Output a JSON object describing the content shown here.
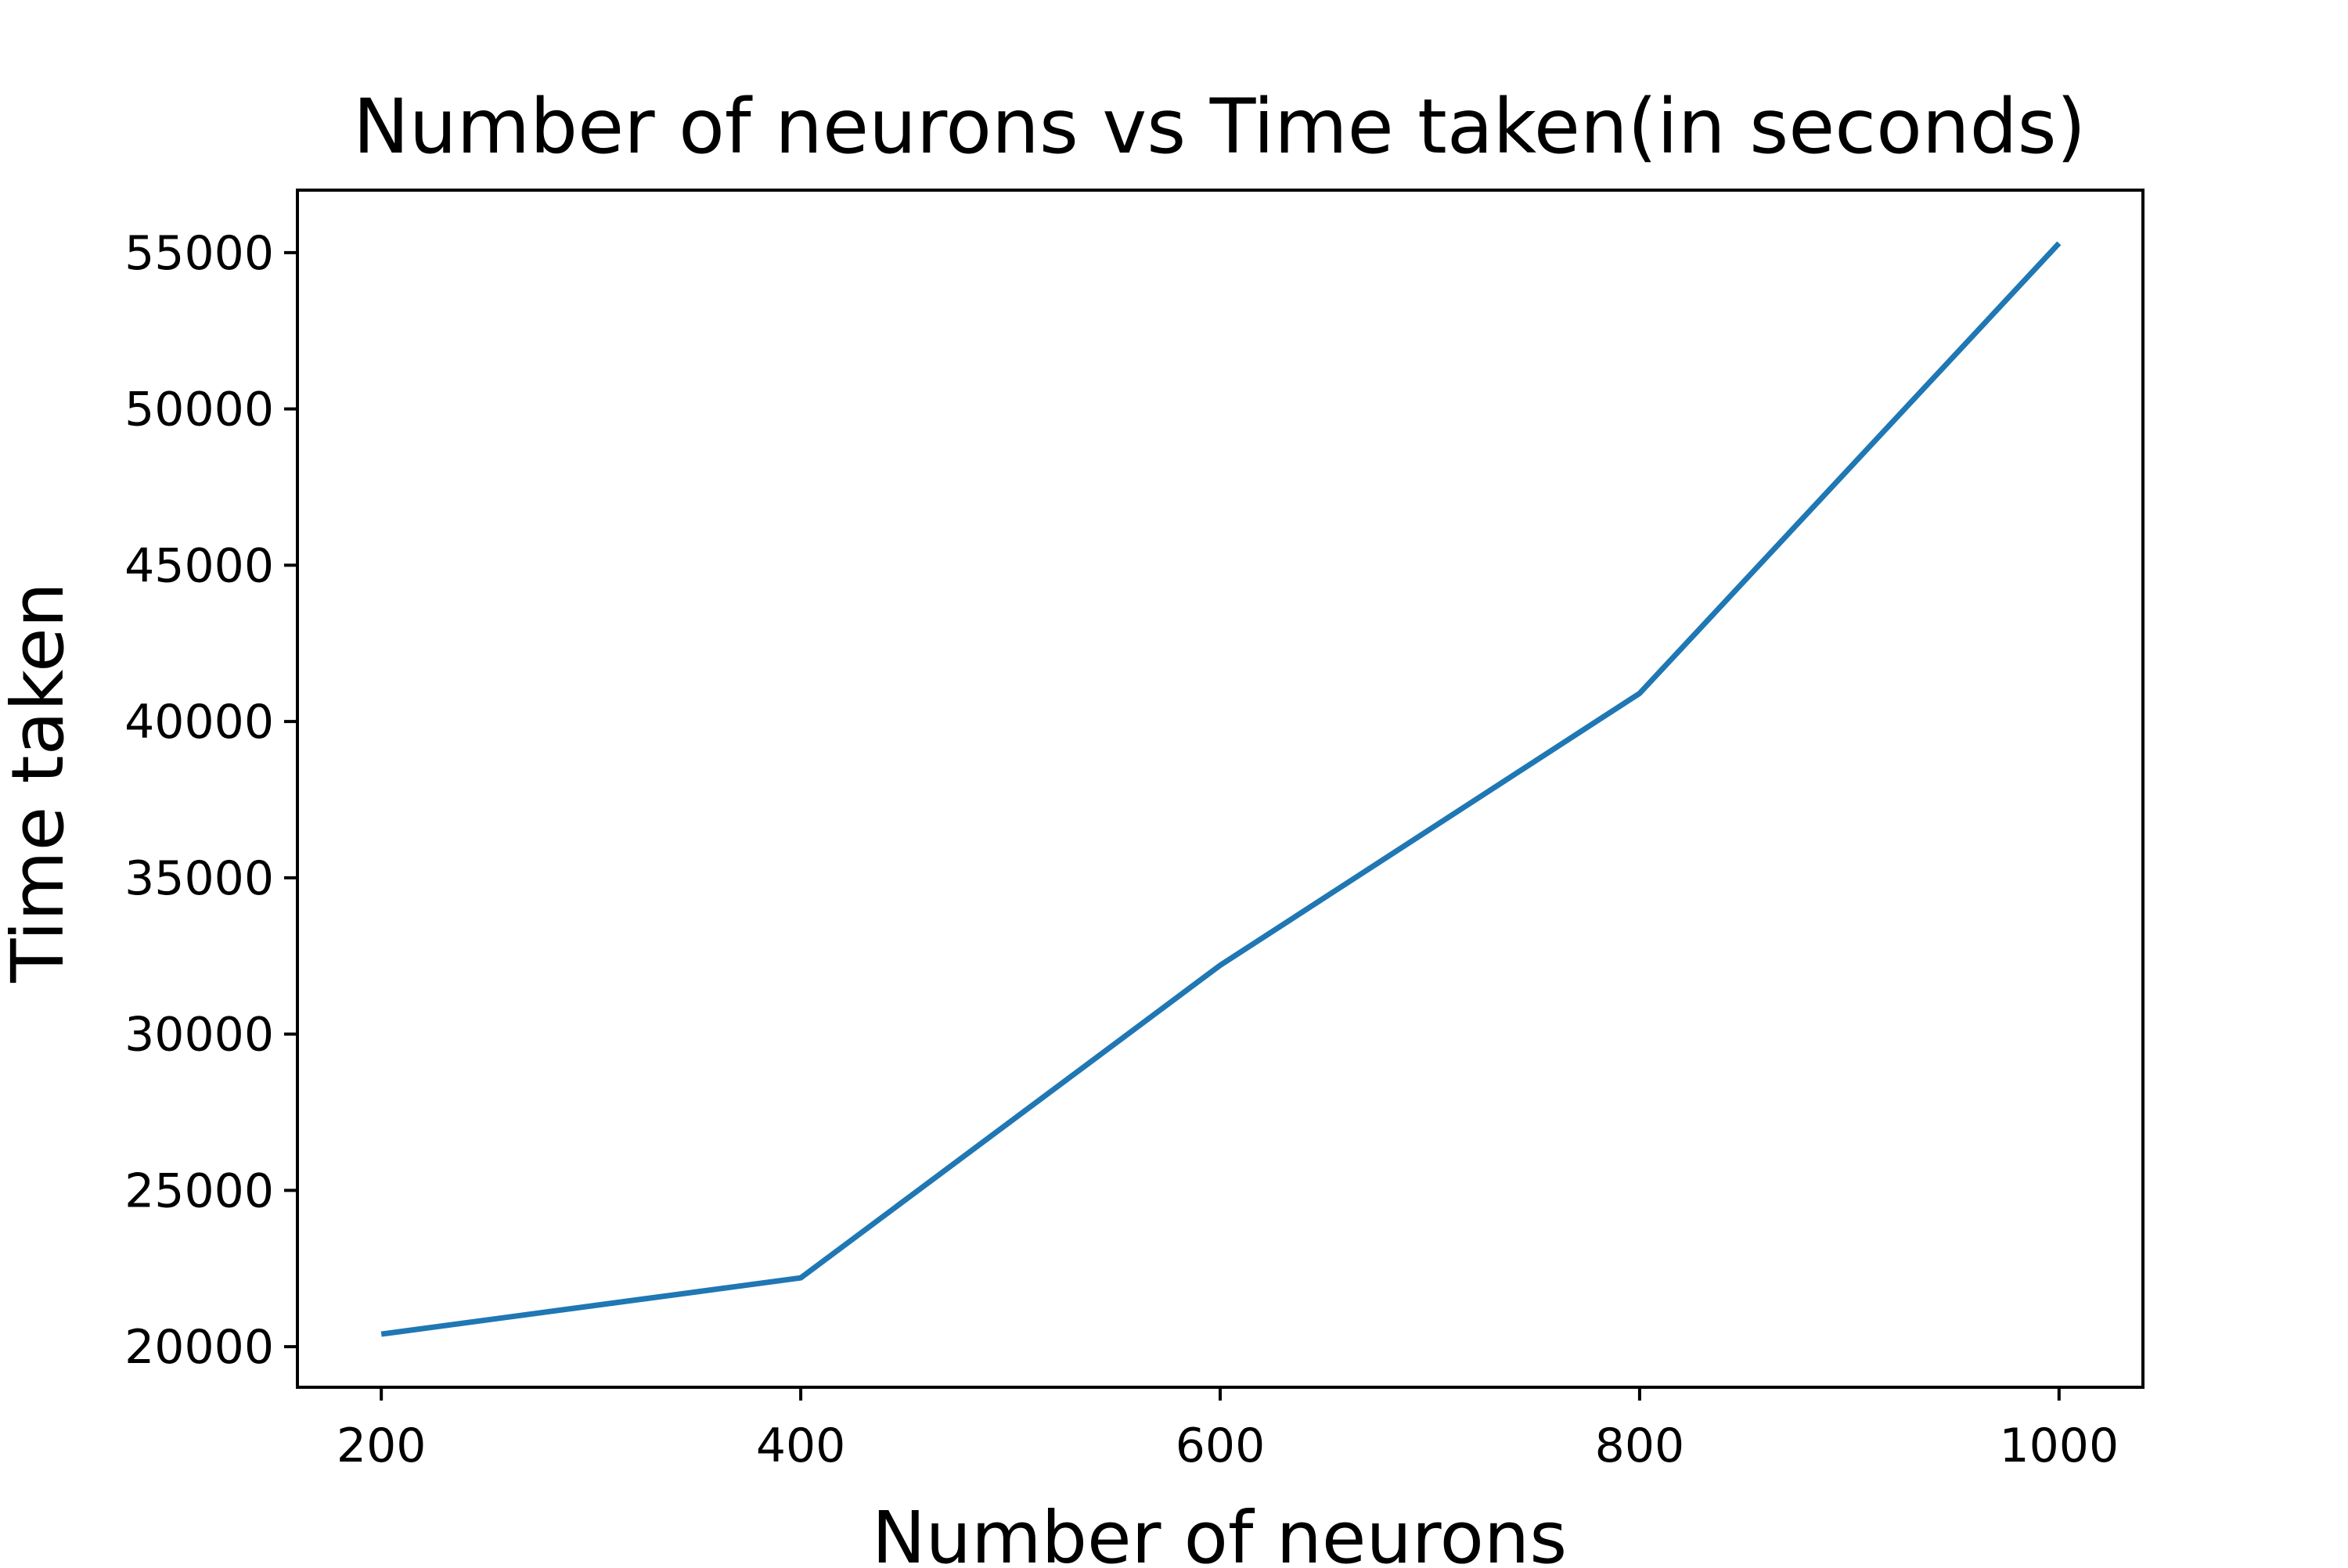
{
  "chart_data": {
    "type": "line",
    "title": "Number of neurons vs Time taken(in seconds)",
    "xlabel": "Number of neurons",
    "ylabel": "Time taken",
    "x": [
      200,
      400,
      600,
      800,
      1000
    ],
    "series": [
      {
        "values": [
          20400,
          22200,
          32200,
          40900,
          55300
        ],
        "color": "#1f77b4"
      }
    ],
    "xlim": [
      160,
      1040
    ],
    "ylim": [
      18700,
      57000
    ],
    "x_ticks": [
      200,
      400,
      600,
      800,
      1000
    ],
    "y_ticks": [
      20000,
      25000,
      30000,
      35000,
      40000,
      45000,
      50000,
      55000
    ],
    "x_tick_labels": [
      "200",
      "400",
      "600",
      "800",
      "1000"
    ],
    "y_tick_labels": [
      "20000",
      "25000",
      "30000",
      "35000",
      "40000",
      "45000",
      "50000",
      "55000"
    ],
    "grid": false,
    "legend": "none"
  }
}
